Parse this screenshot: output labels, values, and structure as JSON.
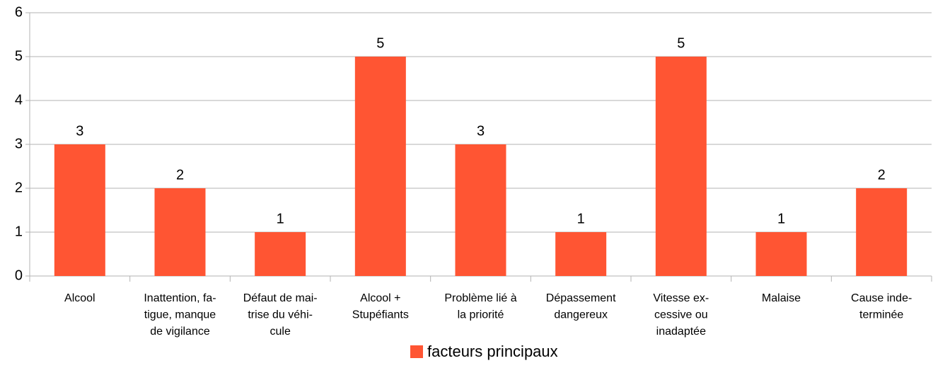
{
  "chart_data": {
    "type": "bar",
    "categories": [
      [
        "Alcool"
      ],
      [
        "Inattention, fa-",
        "tigue, manque",
        "de vigilance"
      ],
      [
        "Défaut de mai-",
        "trise du véhi-",
        "cule"
      ],
      [
        "Alcool +",
        "Stupéfiants"
      ],
      [
        "Problème lié à",
        "la priorité"
      ],
      [
        "Dépassement",
        "dangereux"
      ],
      [
        "Vitesse ex-",
        "cessive ou",
        "inadaptée"
      ],
      [
        "Malaise"
      ],
      [
        "Cause inde-",
        "terminée"
      ]
    ],
    "series": [
      {
        "name": "facteurs principaux",
        "color": "#ff5533",
        "values": [
          3,
          2,
          1,
          5,
          3,
          1,
          5,
          1,
          2
        ]
      }
    ],
    "ylim": [
      0,
      6
    ],
    "yticks": [
      0,
      1,
      2,
      3,
      4,
      5,
      6
    ],
    "grid": true,
    "legend": "bottom"
  }
}
